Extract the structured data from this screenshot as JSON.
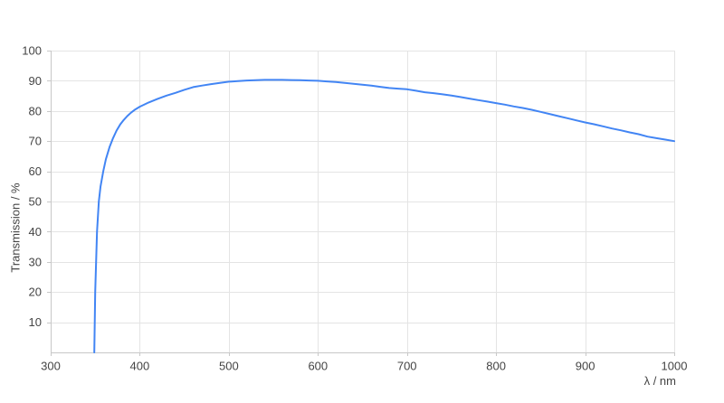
{
  "page": {
    "background": "#ffffff"
  },
  "chart_data": {
    "type": "line",
    "title": "",
    "xlabel": "λ / nm",
    "ylabel": "Transmission / %",
    "xlim": [
      300,
      1000
    ],
    "ylim": [
      0,
      100
    ],
    "x_ticks": [
      300,
      400,
      500,
      600,
      700,
      800,
      900,
      1000
    ],
    "y_ticks": [
      10,
      20,
      30,
      40,
      50,
      60,
      70,
      80,
      90,
      100
    ],
    "grid": true,
    "legend_position": "none",
    "colors": {
      "line": "#4285f4",
      "grid": "#e4e4e4",
      "axis": "#c8c8c8",
      "text": "#444444"
    },
    "series": [
      {
        "name": "Transmission",
        "color": "#4285f4",
        "points": [
          [
            349,
            0
          ],
          [
            349.5,
            10
          ],
          [
            350,
            20
          ],
          [
            351,
            30
          ],
          [
            352,
            40
          ],
          [
            354,
            50
          ],
          [
            356,
            55
          ],
          [
            359,
            60
          ],
          [
            362,
            64
          ],
          [
            366,
            68
          ],
          [
            370,
            71
          ],
          [
            374,
            73.5
          ],
          [
            378,
            75.5
          ],
          [
            382,
            77
          ],
          [
            386,
            78.3
          ],
          [
            390,
            79.4
          ],
          [
            395,
            80.5
          ],
          [
            400,
            81.4
          ],
          [
            410,
            82.8
          ],
          [
            420,
            84.0
          ],
          [
            430,
            85.1
          ],
          [
            440,
            86.0
          ],
          [
            450,
            87.0
          ],
          [
            460,
            87.9
          ],
          [
            470,
            88.4
          ],
          [
            480,
            88.9
          ],
          [
            490,
            89.3
          ],
          [
            500,
            89.7
          ],
          [
            510,
            89.9
          ],
          [
            520,
            90.1
          ],
          [
            530,
            90.2
          ],
          [
            540,
            90.3
          ],
          [
            550,
            90.3
          ],
          [
            560,
            90.3
          ],
          [
            570,
            90.25
          ],
          [
            580,
            90.2
          ],
          [
            590,
            90.1
          ],
          [
            600,
            90.0
          ],
          [
            610,
            89.8
          ],
          [
            620,
            89.6
          ],
          [
            630,
            89.3
          ],
          [
            640,
            89.0
          ],
          [
            650,
            88.7
          ],
          [
            660,
            88.4
          ],
          [
            670,
            88.0
          ],
          [
            680,
            87.6
          ],
          [
            690,
            87.4
          ],
          [
            700,
            87.2
          ],
          [
            710,
            86.7
          ],
          [
            720,
            86.2
          ],
          [
            730,
            85.9
          ],
          [
            740,
            85.5
          ],
          [
            750,
            85.1
          ],
          [
            760,
            84.6
          ],
          [
            770,
            84.1
          ],
          [
            780,
            83.6
          ],
          [
            790,
            83.1
          ],
          [
            800,
            82.6
          ],
          [
            810,
            82.1
          ],
          [
            820,
            81.5
          ],
          [
            830,
            81.0
          ],
          [
            840,
            80.4
          ],
          [
            850,
            79.7
          ],
          [
            860,
            79.0
          ],
          [
            870,
            78.3
          ],
          [
            880,
            77.6
          ],
          [
            890,
            76.9
          ],
          [
            900,
            76.2
          ],
          [
            910,
            75.6
          ],
          [
            920,
            74.9
          ],
          [
            930,
            74.2
          ],
          [
            940,
            73.6
          ],
          [
            950,
            72.9
          ],
          [
            960,
            72.3
          ],
          [
            970,
            71.5
          ],
          [
            980,
            71.0
          ],
          [
            990,
            70.5
          ],
          [
            1000,
            70.0
          ]
        ]
      }
    ]
  }
}
